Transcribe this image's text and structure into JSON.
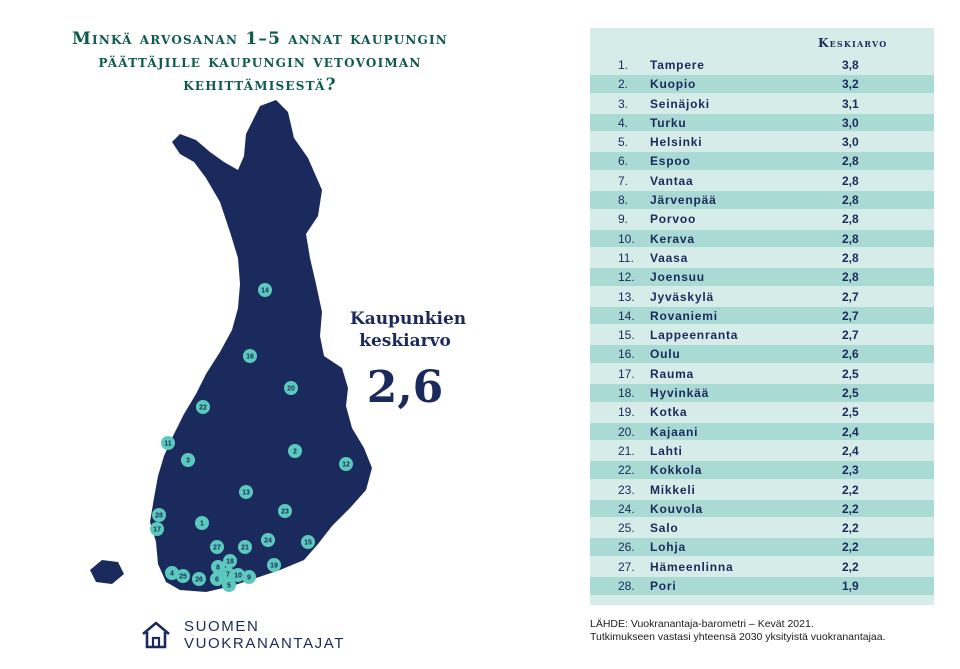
{
  "chart_data": {
    "type": "table",
    "title_lines": [
      "Minkä arvosanan 1–5 annat kaupungin",
      "päättäjille kaupungin vetovoiman",
      "kehittämisestä?"
    ],
    "column_header": "Keskiarvo",
    "rows": [
      {
        "rank": "1.",
        "city": "Tampere",
        "value": "3,8"
      },
      {
        "rank": "2.",
        "city": "Kuopio",
        "value": "3,2"
      },
      {
        "rank": "3.",
        "city": "Seinäjoki",
        "value": "3,1"
      },
      {
        "rank": "4.",
        "city": "Turku",
        "value": "3,0"
      },
      {
        "rank": "5.",
        "city": "Helsinki",
        "value": "3,0"
      },
      {
        "rank": "6.",
        "city": "Espoo",
        "value": "2,8"
      },
      {
        "rank": "7.",
        "city": "Vantaa",
        "value": "2,8"
      },
      {
        "rank": "8.",
        "city": "Järvenpää",
        "value": "2,8"
      },
      {
        "rank": "9.",
        "city": "Porvoo",
        "value": "2,8"
      },
      {
        "rank": "10.",
        "city": "Kerava",
        "value": "2,8"
      },
      {
        "rank": "11.",
        "city": "Vaasa",
        "value": "2,8"
      },
      {
        "rank": "12.",
        "city": "Joensuu",
        "value": "2,8"
      },
      {
        "rank": "13.",
        "city": "Jyväskylä",
        "value": "2,7"
      },
      {
        "rank": "14.",
        "city": "Rovaniemi",
        "value": "2,7"
      },
      {
        "rank": "15.",
        "city": "Lappeenranta",
        "value": "2,7"
      },
      {
        "rank": "16.",
        "city": "Oulu",
        "value": "2,6"
      },
      {
        "rank": "17.",
        "city": "Rauma",
        "value": "2,5"
      },
      {
        "rank": "18.",
        "city": "Hyvinkää",
        "value": "2,5"
      },
      {
        "rank": "19.",
        "city": "Kotka",
        "value": "2,5"
      },
      {
        "rank": "20.",
        "city": "Kajaani",
        "value": "2,4"
      },
      {
        "rank": "21.",
        "city": "Lahti",
        "value": "2,4"
      },
      {
        "rank": "22.",
        "city": "Kokkola",
        "value": "2,3"
      },
      {
        "rank": "23.",
        "city": "Mikkeli",
        "value": "2,2"
      },
      {
        "rank": "24.",
        "city": "Kouvola",
        "value": "2,2"
      },
      {
        "rank": "25.",
        "city": "Salo",
        "value": "2,2"
      },
      {
        "rank": "26.",
        "city": "Lohja",
        "value": "2,2"
      },
      {
        "rank": "27.",
        "city": "Hämeenlinna",
        "value": "2,2"
      },
      {
        "rank": "28.",
        "city": "Pori",
        "value": "1,9"
      }
    ],
    "average_label_lines": [
      "Kaupunkien",
      "keskiarvo"
    ],
    "average_value": "2,6",
    "map_markers": [
      "14",
      "16",
      "20",
      "22",
      "11",
      "2",
      "3",
      "12",
      "13",
      "23",
      "28",
      "17",
      "1",
      "24",
      "15",
      "27",
      "21",
      "18",
      "8",
      "19",
      "4",
      "25",
      "26",
      "6",
      "7",
      "10",
      "9",
      "5"
    ],
    "colors": {
      "navy": "#1b2a5c",
      "teal_marker": "#5cc9bd",
      "title_green": "#0e5a4f",
      "row_light": "#d6ece9",
      "row_dark": "#a9dbd4"
    }
  },
  "logo": {
    "line1": "SUOMEN",
    "line2": "VUOKRANANTAJAT",
    "icon": "house-icon"
  },
  "source": {
    "line1": "LÄHDE: Vuokranantaja-barometri – Kevät 2021.",
    "line2": "Tutkimukseen vastasi yhteensä 2030 yksityistä vuokranantajaa."
  }
}
